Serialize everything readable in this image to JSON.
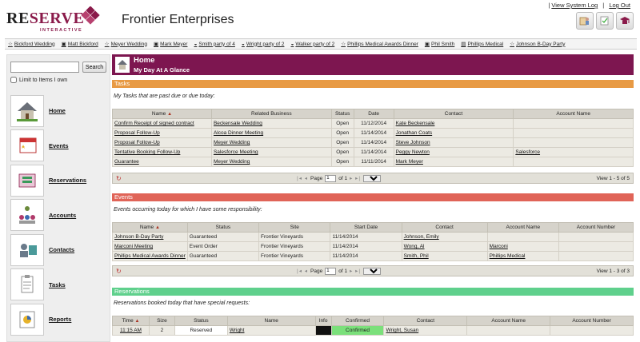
{
  "header": {
    "logo_main_a": "RE",
    "logo_main_b": "SERVE",
    "logo_sub": "INTERACTIVE",
    "company": "Frontier Enterprises",
    "view_log": "View System Log",
    "log_out": "Log Out",
    "icons": [
      "calendar-people-icon",
      "pencil-check-icon",
      "graduation-cap-icon"
    ]
  },
  "quickbar": [
    {
      "label": "Bickford Wedding",
      "icon": "star-icon"
    },
    {
      "label": "Matt Bickford",
      "icon": "person-icon"
    },
    {
      "label": "Meyer Wedding",
      "icon": "star-icon"
    },
    {
      "label": "Mark Meyer",
      "icon": "person-icon"
    },
    {
      "label": "Smith party of 4",
      "icon": "dining-icon"
    },
    {
      "label": "Wright party of 2",
      "icon": "dining-icon"
    },
    {
      "label": "Walker party of 2",
      "icon": "dining-icon"
    },
    {
      "label": "Phillips Medical Awards Dinner",
      "icon": "star-icon"
    },
    {
      "label": "Phil Smith",
      "icon": "person-icon"
    },
    {
      "label": "Phillips Medical",
      "icon": "building-icon"
    },
    {
      "label": "Johnson B-Day Party",
      "icon": "star-icon"
    }
  ],
  "sidebar": {
    "search_value": "",
    "search_button": "Search",
    "limit_label": "Limit to Items I own",
    "items": [
      {
        "label": "Home"
      },
      {
        "label": "Events"
      },
      {
        "label": "Reservations"
      },
      {
        "label": "Accounts"
      },
      {
        "label": "Contacts"
      },
      {
        "label": "Tasks"
      },
      {
        "label": "Reports"
      }
    ]
  },
  "home": {
    "title": "Home",
    "subtitle": "My Day At A Glance"
  },
  "tasks": {
    "section": "Tasks",
    "caption": "My Tasks that are past due or due today:",
    "columns": [
      "Name",
      "Related Business",
      "Status",
      "Date",
      "Contact",
      "Account Name"
    ],
    "rows": [
      [
        "Confirm Receipt of signed contract",
        "Beckensale Wedding",
        "Open",
        "11/12/2014",
        "Kate Beckensale",
        ""
      ],
      [
        "Proposal Follow-Up",
        "Alcoa Dinner Meeting",
        "Open",
        "11/14/2014",
        "Jonathan Coats",
        ""
      ],
      [
        "Proposal Follow-Up",
        "Meyer Wedding",
        "Open",
        "11/14/2014",
        "Steve Johnson",
        ""
      ],
      [
        "Tentative Booking Follow-Up",
        "Salesforce Meeting",
        "Open",
        "11/14/2014",
        "Peggy Newton",
        "Salesforce"
      ],
      [
        "Guarantee",
        "Meyer Wedding",
        "Open",
        "11/11/2014",
        "Mark Meyer",
        ""
      ]
    ],
    "page_label": "Page",
    "page": "1",
    "of_label": "of 1",
    "per_page": "10",
    "view": "View 1 - 5 of 5"
  },
  "events": {
    "section": "Events",
    "caption": "Events occurring today for which I have some responsibility:",
    "columns": [
      "Name",
      "Status",
      "Site",
      "Start Date",
      "Contact",
      "Account Name",
      "Account Number"
    ],
    "rows": [
      [
        "Johnson B-Day Party",
        "Guaranteed",
        "Frontier Vineyards",
        "11/14/2014",
        "Johnson, Emily",
        "",
        ""
      ],
      [
        "Marconi Meeting",
        "Event Order",
        "Frontier Vineyards",
        "11/14/2014",
        "Wong, Al",
        "Marconi",
        ""
      ],
      [
        "Phillips Medical Awards Dinner",
        "Guaranteed",
        "Frontier Vineyards",
        "11/14/2014",
        "Smith, Phil",
        "Phillips Medical",
        ""
      ]
    ],
    "page_label": "Page",
    "page": "1",
    "of_label": "of 1",
    "per_page": "10",
    "view": "View 1 - 3 of 3"
  },
  "reservations": {
    "section": "Reservations",
    "caption": "Reservations booked today that have special requests:",
    "columns": [
      "Time",
      "Size",
      "Status",
      "Name",
      "Info",
      "Confirmed",
      "Contact",
      "Account Name",
      "Account Number"
    ],
    "rows": [
      [
        "11:15 AM",
        "2",
        "Reserved",
        "Wright",
        "",
        "Confirmed",
        "Wright, Susan",
        "",
        ""
      ]
    ]
  },
  "colors": {
    "home_bar": "#7d1650",
    "tasks_bar": "#e89a44",
    "events_bar": "#e06458",
    "reservations_bar": "#5fd08c"
  }
}
